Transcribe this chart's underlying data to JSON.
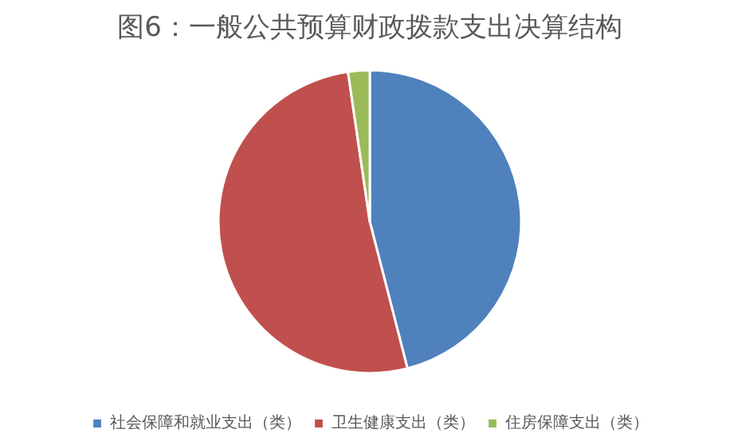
{
  "chart_data": {
    "type": "pie",
    "title": "图6：一般公共预算财政拨款支出决算结构",
    "categories": [
      "社会保障和就业支出（类）",
      "卫生健康支出（类）",
      "住房保障支出（类）"
    ],
    "values": [
      46.0,
      51.7,
      2.3
    ],
    "colors": [
      "#4f81bd",
      "#c0504d",
      "#9bbb59"
    ],
    "legend": "bottom"
  }
}
